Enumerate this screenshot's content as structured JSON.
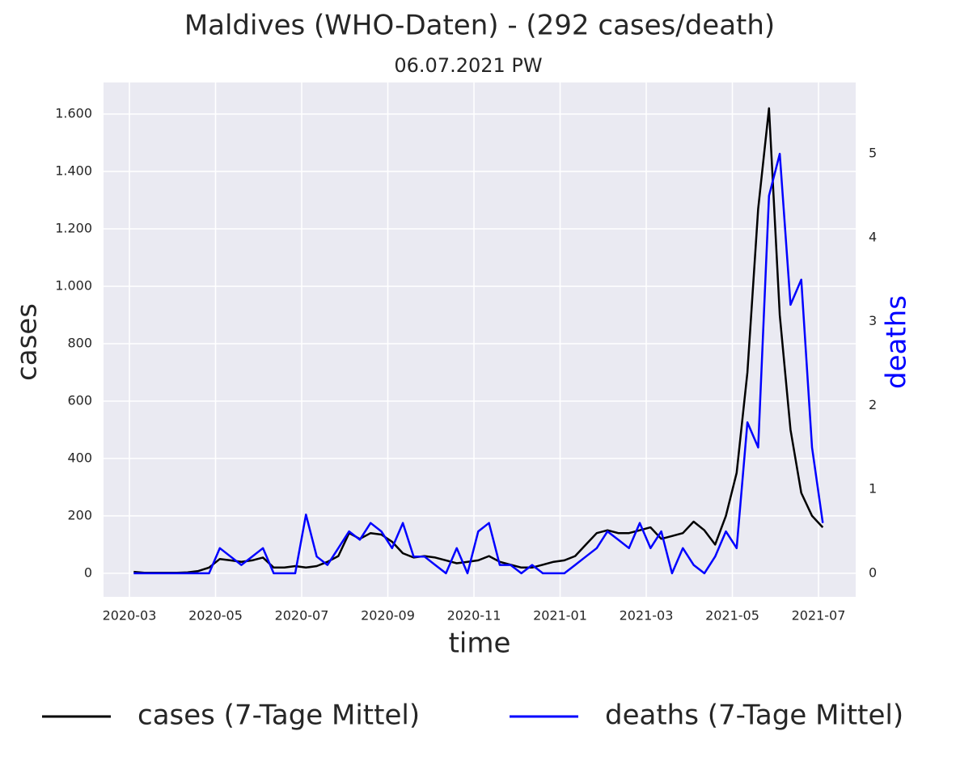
{
  "chart_data": {
    "type": "line",
    "title": "Maldives (WHO-Daten) - (292 cases/death)",
    "subtitle": "06.07.2021 PW",
    "x_label": "time",
    "y_label": "cases",
    "y2_label": "deaths",
    "x": [
      "2020-03",
      "2020-03",
      "2020-03",
      "2020-03",
      "2020-04",
      "2020-04",
      "2020-04",
      "2020-04",
      "2020-05",
      "2020-05",
      "2020-05",
      "2020-05",
      "2020-06",
      "2020-06",
      "2020-06",
      "2020-06",
      "2020-07",
      "2020-07",
      "2020-07",
      "2020-07",
      "2020-08",
      "2020-08",
      "2020-08",
      "2020-08",
      "2020-09",
      "2020-09",
      "2020-09",
      "2020-09",
      "2020-10",
      "2020-10",
      "2020-10",
      "2020-10",
      "2020-11",
      "2020-11",
      "2020-11",
      "2020-11",
      "2020-12",
      "2020-12",
      "2020-12",
      "2020-12",
      "2021-01",
      "2021-01",
      "2021-01",
      "2021-01",
      "2021-02",
      "2021-02",
      "2021-02",
      "2021-02",
      "2021-03",
      "2021-03",
      "2021-03",
      "2021-03",
      "2021-04",
      "2021-04",
      "2021-04",
      "2021-04",
      "2021-05",
      "2021-05",
      "2021-05",
      "2021-05",
      "2021-06",
      "2021-06",
      "2021-06",
      "2021-06",
      "2021-07"
    ],
    "series": [
      {
        "name": "cases (7-Tage Mittel)",
        "color": "#000000",
        "values": [
          5,
          2,
          2,
          2,
          2,
          3,
          8,
          20,
          50,
          45,
          40,
          45,
          55,
          20,
          20,
          25,
          20,
          25,
          40,
          60,
          140,
          120,
          140,
          135,
          110,
          70,
          55,
          60,
          55,
          45,
          35,
          40,
          45,
          60,
          40,
          30,
          20,
          20,
          30,
          40,
          45,
          60,
          100,
          140,
          150,
          140,
          140,
          150,
          160,
          120,
          130,
          140,
          180,
          150,
          100,
          200,
          350,
          700,
          1270,
          1620,
          900,
          500,
          280,
          200,
          160
        ]
      },
      {
        "name": "deaths (7-Tage Mittel)",
        "color": "#0000ff",
        "axis": "y2",
        "values": [
          0,
          0,
          0,
          0,
          0,
          0,
          0,
          0,
          0.3,
          0.2,
          0.1,
          0.2,
          0.3,
          0,
          0,
          0,
          0.7,
          0.2,
          0.1,
          0.3,
          0.5,
          0.4,
          0.6,
          0.5,
          0.3,
          0.6,
          0.2,
          0.2,
          0.1,
          0,
          0.3,
          0,
          0.5,
          0.6,
          0.1,
          0.1,
          0,
          0.1,
          0,
          0,
          0,
          0.1,
          0.2,
          0.3,
          0.5,
          0.4,
          0.3,
          0.6,
          0.3,
          0.5,
          0,
          0.3,
          0.1,
          0,
          0.2,
          0.5,
          0.3,
          1.8,
          1.5,
          4.5,
          5.0,
          3.2,
          3.5,
          1.5,
          0.6
        ]
      }
    ],
    "xticks": [
      "2020-03",
      "2020-05",
      "2020-07",
      "2020-09",
      "2020-11",
      "2021-01",
      "2021-03",
      "2021-05",
      "2021-07"
    ],
    "ylim": [
      -82,
      1710
    ],
    "yticks": [
      0,
      200,
      400,
      600,
      800,
      {
        "value": 1000,
        "label": "1.000"
      },
      {
        "value": 1200,
        "label": "1.200"
      },
      {
        "value": 1400,
        "label": "1.400"
      },
      {
        "value": 1600,
        "label": "1.600"
      }
    ],
    "y2lim": [
      -0.28,
      5.85
    ],
    "y2ticks": [
      0,
      1,
      2,
      3,
      4,
      5
    ],
    "grid": true,
    "legend": "bottom"
  }
}
